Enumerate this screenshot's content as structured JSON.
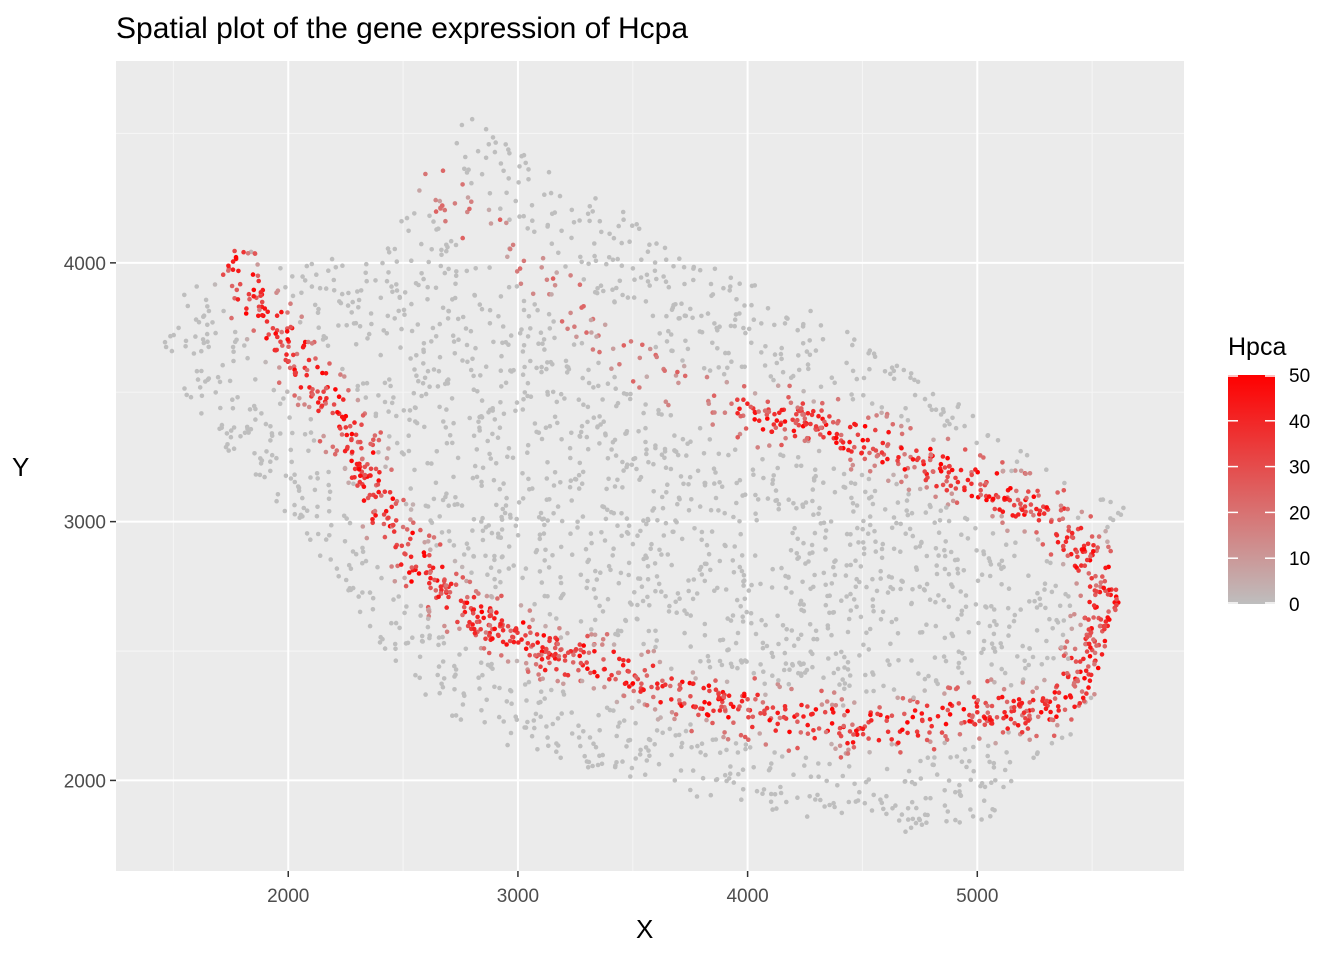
{
  "chart_data": {
    "type": "scatter",
    "title": "Spatial plot of the gene expression of Hcpa",
    "xlabel": "X",
    "ylabel": "Y",
    "xlim": [
      1250,
      5900
    ],
    "ylim": [
      1650,
      4780
    ],
    "x_ticks": [
      2000,
      3000,
      4000,
      5000
    ],
    "y_ticks": [
      2000,
      3000,
      4000
    ],
    "x_tick_labels": [
      "2000",
      "3000",
      "4000",
      "5000"
    ],
    "y_tick_labels": [
      "2000",
      "3000",
      "4000"
    ],
    "grid": true,
    "panel_background": "#ebebeb",
    "point_color_low": "#bebebe",
    "point_color_high": "#ff0000",
    "color_scale": {
      "name": "Hpca",
      "range": [
        0,
        50
      ],
      "breaks": [
        0,
        10,
        20,
        30,
        40,
        50
      ],
      "break_labels": [
        "0",
        "10",
        "20",
        "30",
        "40",
        "50"
      ],
      "low": "#bebebe",
      "high": "#ff0000"
    },
    "legend_position": "right",
    "tissue_outline": [
      [
        1450,
        3760
      ],
      [
        1550,
        3880
      ],
      [
        1700,
        3990
      ],
      [
        1820,
        4060
      ],
      [
        2100,
        4000
      ],
      [
        2400,
        4050
      ],
      [
        2600,
        4350
      ],
      [
        2700,
        4520
      ],
      [
        2800,
        4560
      ],
      [
        2950,
        4500
      ],
      [
        3200,
        4300
      ],
      [
        3500,
        4200
      ],
      [
        3750,
        4020
      ],
      [
        4200,
        3860
      ],
      [
        4500,
        3700
      ],
      [
        4700,
        3580
      ],
      [
        5000,
        3420
      ],
      [
        5300,
        3220
      ],
      [
        5650,
        3050
      ],
      [
        5630,
        2750
      ],
      [
        5550,
        2400
      ],
      [
        5450,
        2200
      ],
      [
        5200,
        2050
      ],
      [
        5050,
        1850
      ],
      [
        4700,
        1800
      ],
      [
        4300,
        1850
      ],
      [
        4000,
        1900
      ],
      [
        3700,
        1950
      ],
      [
        3300,
        2050
      ],
      [
        2900,
        2150
      ],
      [
        2600,
        2300
      ],
      [
        2400,
        2500
      ],
      [
        2200,
        2800
      ],
      [
        2000,
        3000
      ],
      [
        1800,
        3200
      ],
      [
        1600,
        3400
      ],
      [
        1480,
        3600
      ]
    ],
    "high_expression_bands": [
      {
        "description_values": "outer ring (Hpca 20-50)",
        "path": [
          [
            1750,
            4020
          ],
          [
            1900,
            3800
          ],
          [
            2100,
            3550
          ],
          [
            2300,
            3300
          ],
          [
            2400,
            3050
          ],
          [
            2550,
            2850
          ],
          [
            2700,
            2700
          ],
          [
            2900,
            2600
          ],
          [
            3100,
            2500
          ],
          [
            3400,
            2430
          ],
          [
            3800,
            2310
          ],
          [
            4100,
            2250
          ],
          [
            4500,
            2200
          ],
          [
            4800,
            2230
          ],
          [
            5000,
            2280
          ],
          [
            5200,
            2250
          ],
          [
            5400,
            2330
          ],
          [
            5500,
            2500
          ],
          [
            5560,
            2720
          ],
          [
            5450,
            2920
          ],
          [
            5250,
            3050
          ],
          [
            5000,
            3150
          ],
          [
            4700,
            3250
          ],
          [
            4400,
            3350
          ],
          [
            4200,
            3400
          ],
          [
            4000,
            3420
          ]
        ]
      },
      {
        "description_values": "inner arm (Hpca 5-25)",
        "path": [
          [
            2650,
            4300
          ],
          [
            2800,
            4150
          ],
          [
            3100,
            3950
          ],
          [
            3350,
            3750
          ],
          [
            3550,
            3580
          ],
          [
            3800,
            3480
          ],
          [
            4000,
            3420
          ]
        ]
      }
    ]
  }
}
